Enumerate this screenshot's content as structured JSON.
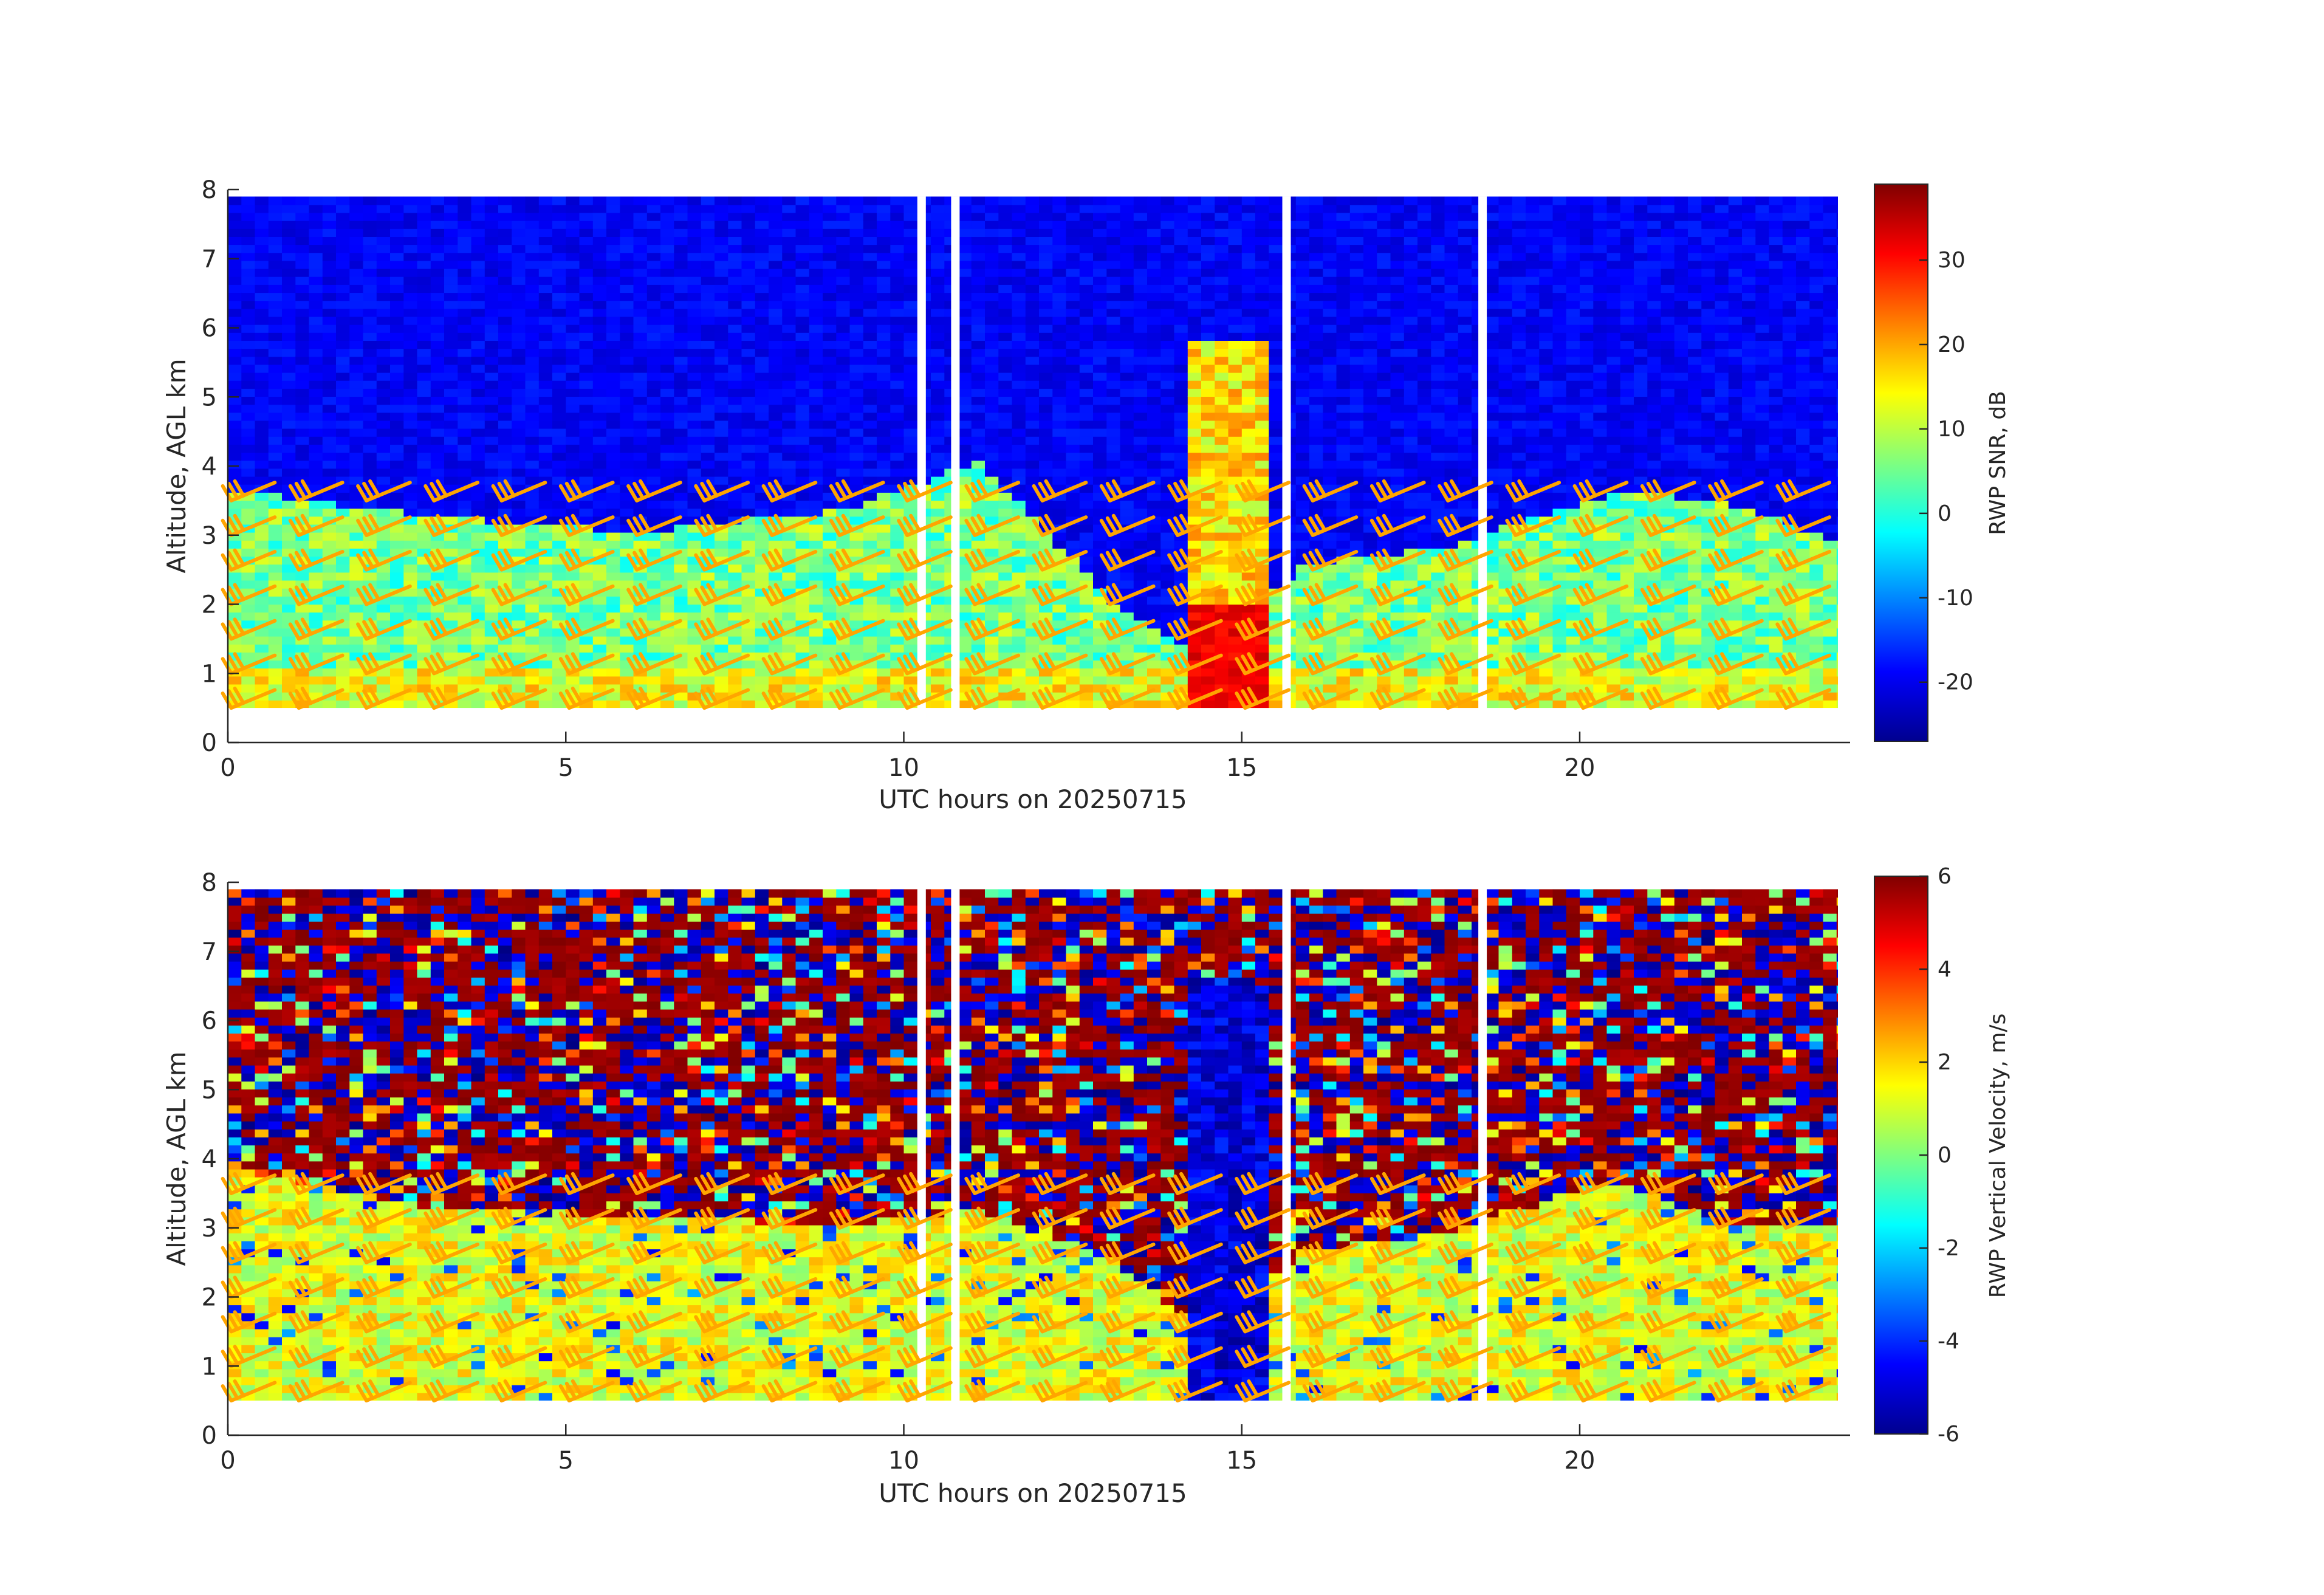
{
  "figure": {
    "background": "#ffffff",
    "barb_color": "#ffa500",
    "axis_color": "#262626"
  },
  "chart_data": [
    {
      "type": "heatmap",
      "title": "",
      "xlabel": "UTC hours on 20250715",
      "ylabel": "Altitude, AGL km",
      "xlim": [
        0,
        24
      ],
      "ylim": [
        0,
        8
      ],
      "xticks": [
        0,
        5,
        10,
        15,
        20
      ],
      "yticks": [
        0,
        1,
        2,
        3,
        4,
        5,
        6,
        7,
        8
      ],
      "colorbar": {
        "label": "RWP SNR, dB",
        "colormap": "jet",
        "clim": [
          -27,
          39
        ],
        "ticks": [
          -20,
          -10,
          0,
          10,
          20,
          30
        ]
      },
      "field_description": "Signal-to-noise ratio; high values in the boundary layer below ~3.5 km, peak in precipitation near 14.5-15 UTC",
      "boundary_layer_top_km": [
        [
          0,
          3.6
        ],
        [
          3,
          3.2
        ],
        [
          6,
          3.0
        ],
        [
          9,
          3.3
        ],
        [
          11,
          4.0
        ],
        [
          13,
          2.0
        ],
        [
          14.3,
          1.2
        ],
        [
          15.8,
          2.5
        ],
        [
          18,
          2.8
        ],
        [
          20.5,
          3.6
        ],
        [
          22,
          3.4
        ],
        [
          24,
          2.8
        ]
      ],
      "precip_column": {
        "start_hour": 14.2,
        "end_hour": 15.3
      },
      "data_gaps_hours": [
        10.2,
        10.7,
        15.6,
        18.5
      ],
      "wind_barbs": {
        "color": "#ffa500",
        "times_hours": [
          0,
          1,
          2,
          3,
          4,
          5,
          6,
          7,
          8,
          9,
          10,
          11,
          12,
          13,
          14,
          15,
          16,
          17,
          18,
          19,
          20,
          21,
          22,
          23
        ],
        "heights_km": [
          0.5,
          1.0,
          1.5,
          2.0,
          2.5,
          3.0,
          3.5
        ]
      }
    },
    {
      "type": "heatmap",
      "title": "",
      "xlabel": "UTC hours on 20250715",
      "ylabel": "Altitude, AGL km",
      "xlim": [
        0,
        24
      ],
      "ylim": [
        0,
        8
      ],
      "xticks": [
        0,
        5,
        10,
        15,
        20
      ],
      "yticks": [
        0,
        1,
        2,
        3,
        4,
        5,
        6,
        7,
        8
      ],
      "colorbar": {
        "label": "RWP Vertical Velocity, m/s",
        "colormap": "jet",
        "clim": [
          -6,
          6
        ],
        "ticks": [
          -6,
          -4,
          -2,
          0,
          2,
          4,
          6
        ]
      },
      "field_description": "Vertical velocity; noisy above the boundary layer, near 0 to +2 m/s below ~3 km, strong downward (~-6 m/s) in precipitation near 14.5-15 UTC",
      "boundary_layer_top_km": [
        [
          0,
          3.8
        ],
        [
          3,
          3.2
        ],
        [
          6,
          3.1
        ],
        [
          9,
          3.0
        ],
        [
          11,
          3.2
        ],
        [
          13,
          2.5
        ],
        [
          14.3,
          1.5
        ],
        [
          15.8,
          2.6
        ],
        [
          18,
          2.9
        ],
        [
          20.5,
          3.6
        ],
        [
          22,
          3.0
        ],
        [
          24,
          3.0
        ]
      ],
      "precip_column": {
        "start_hour": 14.2,
        "end_hour": 15.3
      },
      "data_gaps_hours": [
        10.2,
        10.7,
        15.6,
        18.5
      ],
      "wind_barbs": {
        "color": "#ffa500",
        "times_hours": [
          0,
          1,
          2,
          3,
          4,
          5,
          6,
          7,
          8,
          9,
          10,
          11,
          12,
          13,
          14,
          15,
          16,
          17,
          18,
          19,
          20,
          21,
          22,
          23
        ],
        "heights_km": [
          0.5,
          1.0,
          1.5,
          2.0,
          2.5,
          3.0,
          3.5
        ]
      }
    }
  ]
}
